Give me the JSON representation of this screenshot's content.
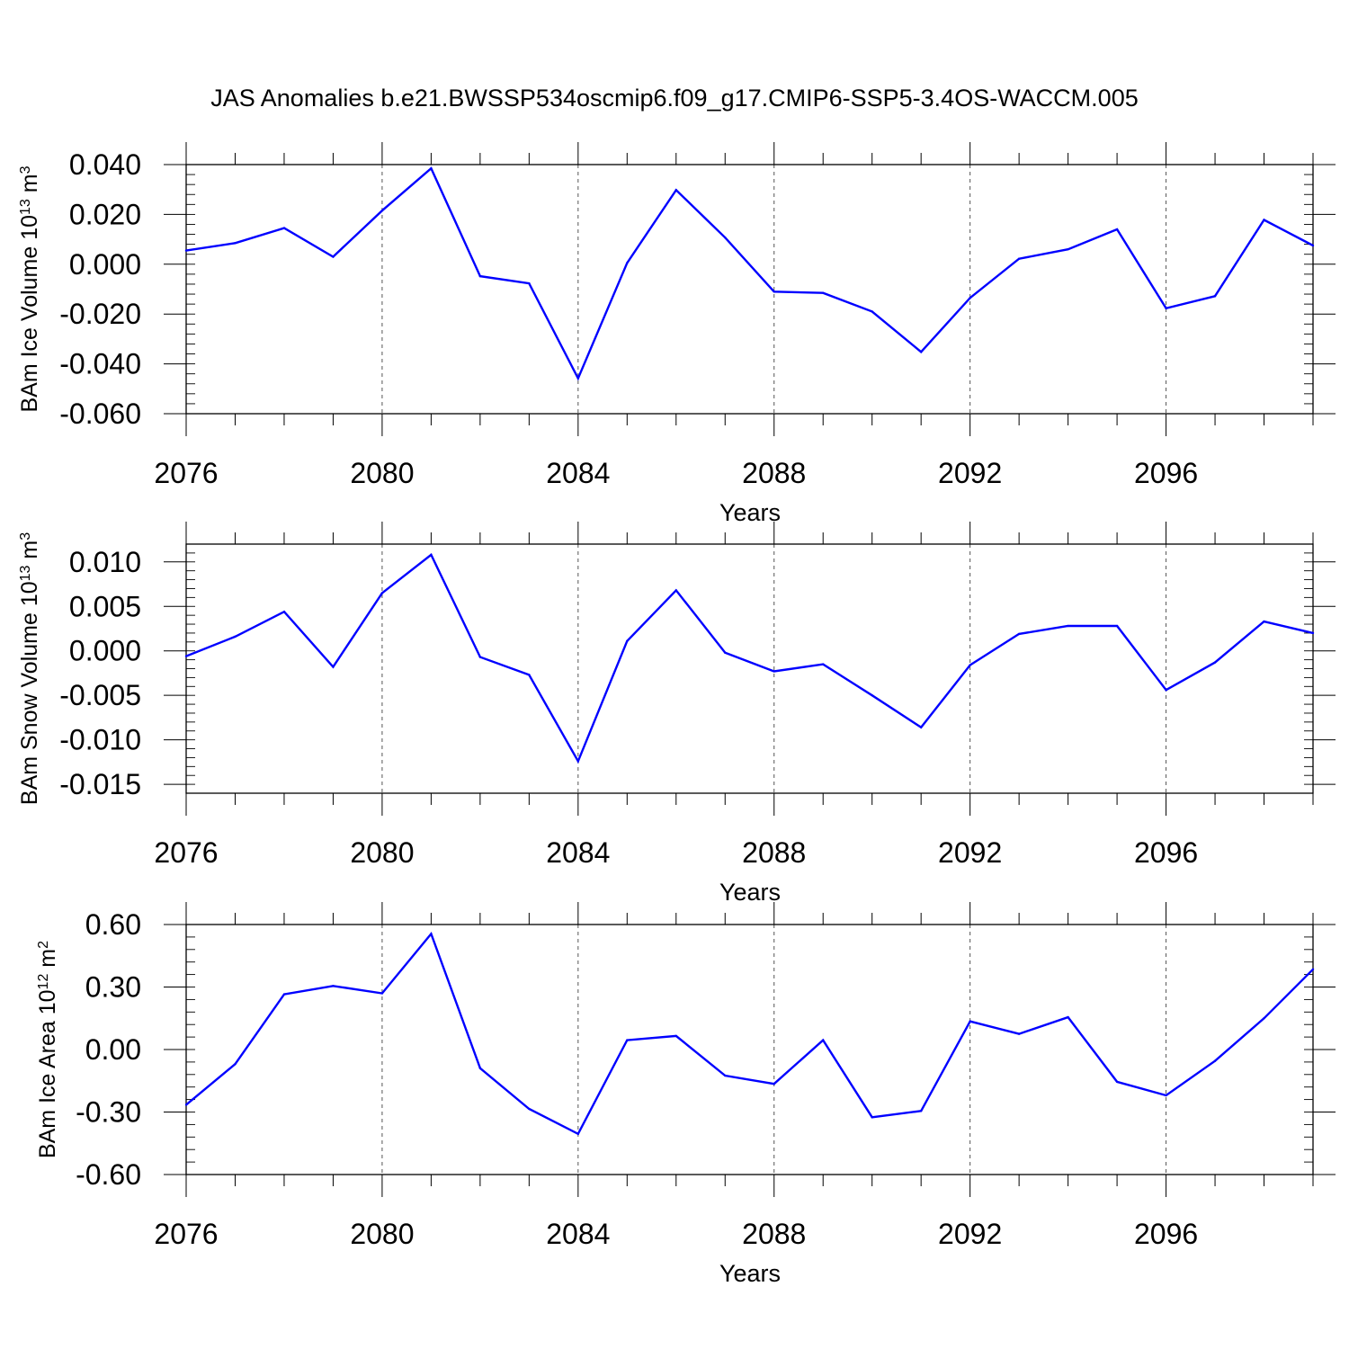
{
  "title": "JAS Anomalies b.e21.BWSSP534oscmip6.f09_g17.CMIP6-SSP5-3.4OS-WACCM.005",
  "line_color": "#0000ff",
  "chart_data": [
    {
      "type": "line",
      "ylabel": "BAm Ice Volume 10",
      "ylabel_exp": "13",
      "ylabel_unit": " m",
      "ylabel_unit_exp": "3",
      "xlabel": "Years",
      "xlim": [
        2076,
        2099
      ],
      "ylim": [
        -0.06,
        0.04
      ],
      "x_ticks": [
        2076,
        2080,
        2084,
        2088,
        2092,
        2096
      ],
      "x_tick_labels": [
        "2076",
        "2080",
        "2084",
        "2088",
        "2092",
        "2096"
      ],
      "y_ticks": [
        -0.06,
        -0.04,
        -0.02,
        0.0,
        0.02,
        0.04
      ],
      "y_tick_labels": [
        "-0.060",
        "-0.040",
        "-0.020",
        "0.000",
        "0.020",
        "0.040"
      ],
      "y_minor_step": 0.004,
      "grid": "vertical-dashed",
      "series": [
        {
          "x": [
            2076,
            2077,
            2078,
            2079,
            2080,
            2081,
            2082,
            2083,
            2084,
            2085,
            2086,
            2087,
            2088,
            2089,
            2090,
            2091,
            2092,
            2093,
            2094,
            2095,
            2096,
            2097,
            2098,
            2099
          ],
          "values": [
            0.0055,
            0.0085,
            0.0145,
            0.003,
            0.0215,
            0.0385,
            -0.0048,
            -0.0077,
            -0.0458,
            0.0005,
            0.0298,
            0.0107,
            -0.011,
            -0.0115,
            -0.019,
            -0.0352,
            -0.0135,
            0.0022,
            0.006,
            0.014,
            -0.0177,
            -0.0128,
            0.0178,
            0.0075
          ]
        }
      ]
    },
    {
      "type": "line",
      "ylabel": "BAm Snow Volume 10",
      "ylabel_exp": "13",
      "ylabel_unit": " m",
      "ylabel_unit_exp": "3",
      "xlabel": "Years",
      "xlim": [
        2076,
        2099
      ],
      "ylim": [
        -0.016,
        0.012
      ],
      "x_ticks": [
        2076,
        2080,
        2084,
        2088,
        2092,
        2096
      ],
      "x_tick_labels": [
        "2076",
        "2080",
        "2084",
        "2088",
        "2092",
        "2096"
      ],
      "y_ticks": [
        -0.015,
        -0.01,
        -0.005,
        0.0,
        0.005,
        0.01
      ],
      "y_tick_labels": [
        "-0.015",
        "-0.010",
        "-0.005",
        "0.000",
        "0.005",
        "0.010"
      ],
      "y_minor_step": 0.001,
      "grid": "vertical-dashed",
      "series": [
        {
          "x": [
            2076,
            2077,
            2078,
            2079,
            2080,
            2081,
            2082,
            2083,
            2084,
            2085,
            2086,
            2087,
            2088,
            2089,
            2090,
            2091,
            2092,
            2093,
            2094,
            2095,
            2096,
            2097,
            2098,
            2099
          ],
          "values": [
            -0.0006,
            0.0016,
            0.0044,
            -0.0018,
            0.0065,
            0.0108,
            -0.0007,
            -0.0027,
            -0.0124,
            0.0011,
            0.0068,
            -0.0002,
            -0.0023,
            -0.0015,
            -0.005,
            -0.0086,
            -0.0016,
            0.0019,
            0.0028,
            0.0028,
            -0.0044,
            -0.0013,
            0.0033,
            0.002
          ]
        }
      ]
    },
    {
      "type": "line",
      "ylabel": "BAm Ice Area 10",
      "ylabel_exp": "12",
      "ylabel_unit": " m",
      "ylabel_unit_exp": "2",
      "xlabel": "Years",
      "xlim": [
        2076,
        2099
      ],
      "ylim": [
        -0.6,
        0.6
      ],
      "x_ticks": [
        2076,
        2080,
        2084,
        2088,
        2092,
        2096
      ],
      "x_tick_labels": [
        "2076",
        "2080",
        "2084",
        "2088",
        "2092",
        "2096"
      ],
      "y_ticks": [
        -0.6,
        -0.3,
        0.0,
        0.3,
        0.6
      ],
      "y_tick_labels": [
        "-0.60",
        "-0.30",
        "0.00",
        "0.30",
        "0.60"
      ],
      "y_minor_step": 0.06,
      "grid": "vertical-dashed",
      "series": [
        {
          "x": [
            2076,
            2077,
            2078,
            2079,
            2080,
            2081,
            2082,
            2083,
            2084,
            2085,
            2086,
            2087,
            2088,
            2089,
            2090,
            2091,
            2092,
            2093,
            2094,
            2095,
            2096,
            2097,
            2098,
            2099
          ],
          "values": [
            -0.265,
            -0.07,
            0.265,
            0.305,
            0.27,
            0.555,
            -0.09,
            -0.285,
            -0.405,
            0.045,
            0.065,
            -0.125,
            -0.165,
            0.045,
            -0.325,
            -0.295,
            0.135,
            0.075,
            0.155,
            -0.155,
            -0.22,
            -0.055,
            0.15,
            0.385
          ]
        }
      ]
    }
  ]
}
